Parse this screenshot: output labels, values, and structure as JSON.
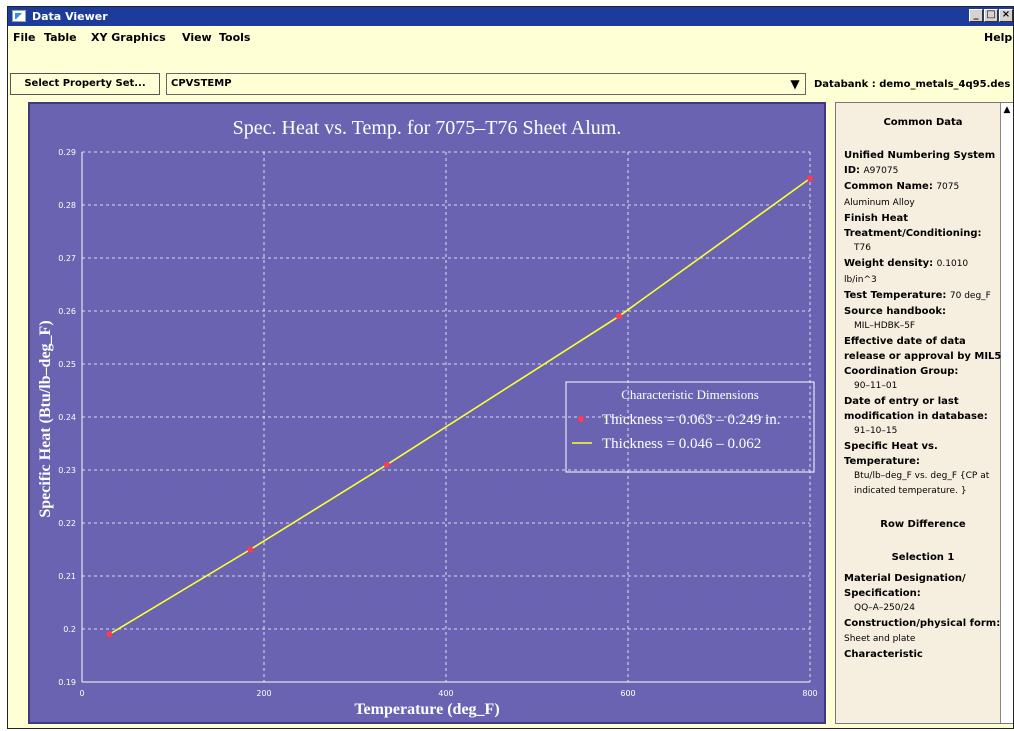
{
  "window": {
    "title": "Data Viewer",
    "controls": [
      "_",
      "□",
      "×"
    ]
  },
  "menu": {
    "items": [
      "File",
      "Table",
      "XY Graphics",
      "View",
      "Tools"
    ],
    "help": "Help"
  },
  "toolbar": {
    "select_label": "Select Property Set...",
    "property_value": "CPVSTEMP",
    "dropdown_icon": "chevron-down-icon",
    "databank_label": "Databank :",
    "databank_value": "demo_metals_4q95.des"
  },
  "chart_data": {
    "type": "line",
    "title": "Spec. Heat vs. Temp. for 7075–T76 Sheet Alum.",
    "xlabel": "Temperature (deg_F)",
    "ylabel": "Specific Heat (Btu/lb–deg_F)",
    "xlim": [
      0,
      800
    ],
    "ylim": [
      0.19,
      0.29
    ],
    "xticks": [
      0,
      200,
      400,
      600,
      800
    ],
    "yticks": [
      0.19,
      0.2,
      0.21,
      0.22,
      0.23,
      0.24,
      0.25,
      0.26,
      0.27,
      0.28,
      0.29
    ],
    "grid": true,
    "legend": {
      "title": "Characteristic Dimensions",
      "entries": [
        "Thickness = 0.063 – 0.249 in.",
        "Thickness = 0.046 – 0.062"
      ],
      "placement": "right-center"
    },
    "series": [
      {
        "name": "Thickness = 0.063 – 0.249 in.",
        "kind": "markers",
        "color": "#ff3a55",
        "x": [
          30,
          185,
          335,
          590,
          800
        ],
        "y": [
          0.199,
          0.215,
          0.231,
          0.259,
          0.285
        ]
      },
      {
        "name": "Thickness = 0.046 – 0.062",
        "kind": "line",
        "color": "#ffff33",
        "x": [
          30,
          185,
          335,
          590,
          800
        ],
        "y": [
          0.199,
          0.215,
          0.231,
          0.259,
          0.285
        ]
      }
    ],
    "colors": {
      "background": "#6a63b1",
      "text": "#ffffff",
      "grid": "#ffffff"
    }
  },
  "panel": {
    "title": "Common Data",
    "fields": [
      {
        "label": "Unified Numbering System ID:",
        "value": "A97075",
        "inline": true
      },
      {
        "label": "Common Name:",
        "value": "7075 Aluminum Alloy",
        "inline": true
      },
      {
        "label": "Finish Heat Treatment/Conditioning:",
        "value": "T76"
      },
      {
        "label": "Weight density:",
        "value": "0.1010 lb/in^3",
        "inline": true
      },
      {
        "label": "Test Temperature:",
        "value": "70 deg_F",
        "inline": true
      },
      {
        "label": "Source handbook:",
        "value": "MIL–HDBK–5F"
      },
      {
        "label": "Effective date of data release or approval by MIL5 Coordination Group:",
        "value": "90–11–01"
      },
      {
        "label": "Date of entry or last modification in database:",
        "value": "91–10–15"
      },
      {
        "label": "Specific Heat vs. Temperature:",
        "value": "Btu/lb–deg_F vs. deg_F {CP at indicated temperature. }"
      }
    ],
    "row_difference_title": "Row Difference",
    "selection_title": "Selection 1",
    "selection_fields": [
      {
        "label": "Material Designation/ Specification:",
        "value": "QQ–A–250/24"
      },
      {
        "label": "Construction/physical form:",
        "value": "Sheet and plate",
        "inline": true
      },
      {
        "label": "Characteristic",
        "value": ""
      }
    ]
  }
}
